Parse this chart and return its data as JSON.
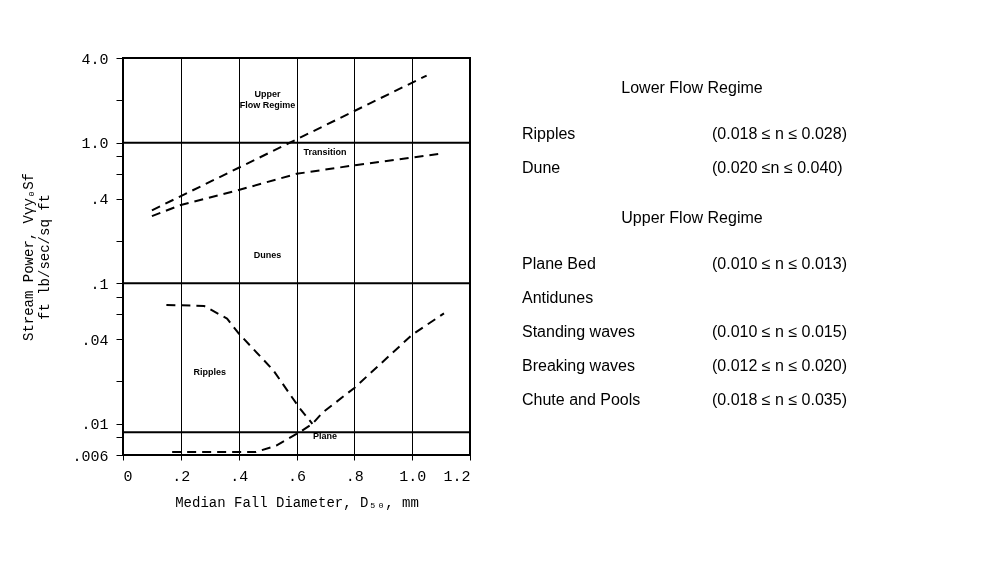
{
  "chart_data": {
    "type": "line",
    "xlabel": "Median Fall Diameter, D₅₀, mm",
    "ylabel": "Stream Power, Vγy₀Sf\nft lb/sec/sq ft",
    "xlim": [
      0,
      1.2
    ],
    "xticks": [
      {
        "value": 0,
        "label": "0"
      },
      {
        "value": 0.2,
        "label": ".2"
      },
      {
        "value": 0.4,
        "label": ".4"
      },
      {
        "value": 0.6,
        "label": ".6"
      },
      {
        "value": 0.8,
        "label": ".8"
      },
      {
        "value": 1.0,
        "label": "1.0"
      },
      {
        "value": 1.2,
        "label": "1.2"
      }
    ],
    "ylim": [
      0.006,
      4.0
    ],
    "yticks": [
      {
        "value": 4.0,
        "label": "4.0"
      },
      {
        "value": 2,
        "label": null
      },
      {
        "value": 1.0,
        "label": "1.0"
      },
      {
        "value": 0.8,
        "label": null
      },
      {
        "value": 0.6,
        "label": null
      },
      {
        "value": 0.4,
        "label": ".4"
      },
      {
        "value": 0.2,
        "label": null
      },
      {
        "value": 0.1,
        "label": ".1"
      },
      {
        "value": 0.08,
        "label": null
      },
      {
        "value": 0.06,
        "label": null
      },
      {
        "value": 0.04,
        "label": ".04"
      },
      {
        "value": 0.02,
        "label": null
      },
      {
        "value": 0.01,
        "label": ".01"
      },
      {
        "value": 0.008,
        "label": null
      },
      {
        "value": 0.006,
        "label": ".006"
      }
    ],
    "log": "y",
    "grid": "x",
    "line_style": "dashed",
    "series": [
      {
        "color": "#000000",
        "x": [
          0.1,
          1.05
        ],
        "values": [
          0.33,
          3.0
        ]
      },
      {
        "color": "#000000",
        "x": [
          0.1,
          0.2,
          0.4,
          0.6,
          0.8,
          1.09
        ],
        "values": [
          0.3,
          0.36,
          0.46,
          0.6,
          0.69,
          0.83
        ]
      },
      {
        "color": "#000000",
        "x": [
          0.15,
          0.28,
          0.36,
          0.4,
          0.52,
          0.585,
          0.61,
          0.655
        ],
        "values": [
          0.07,
          0.069,
          0.056,
          0.044,
          0.024,
          0.0154,
          0.013,
          0.01
        ]
      },
      {
        "color": "#000000",
        "x": [
          0.17,
          0.46,
          0.53,
          0.61,
          0.655,
          0.69,
          0.8,
          1.0,
          1.11
        ],
        "values": [
          0.0063,
          0.0063,
          0.007,
          0.0087,
          0.01,
          0.012,
          0.018,
          0.043,
          0.061
        ]
      }
    ],
    "ref_lines": [
      {
        "axis": "y",
        "value": 1.0,
        "color": "#000000",
        "line_style": "solid"
      },
      {
        "axis": "y",
        "value": 0.1,
        "color": "#000000",
        "line_style": "solid"
      },
      {
        "axis": "y",
        "value": 0.0087,
        "color": "#000000",
        "line_style": "solid"
      }
    ],
    "annotations": [
      "Upper\nFlow Regime",
      "Transition",
      "Dunes",
      "Ripples",
      "Plane",
      "Lower Flow Regime",
      "Ripples\t(0.018 ≤ n ≤ 0.028)",
      "Dune\t(0.020 ≤n ≤ 0.040)",
      "Upper Flow Regime",
      "Plane Bed\t(0.010 ≤ n ≤ 0.013)",
      "Antidunes\t",
      "Standing waves\t(0.010 ≤ n ≤ 0.015)",
      "Breaking waves\t(0.012 ≤ n ≤ 0.020)",
      "Chute and Pools\t(0.018 ≤ n ≤ 0.035)"
    ]
  }
}
